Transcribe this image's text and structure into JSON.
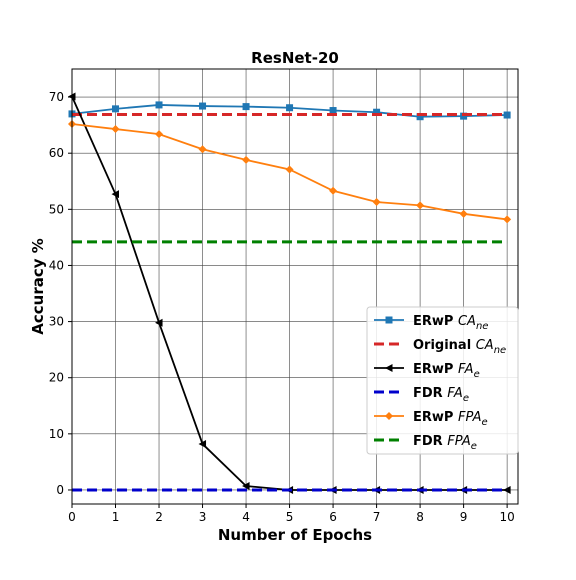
{
  "chart_data": {
    "type": "line",
    "title": "ResNet-20",
    "xlabel": "Number of Epochs",
    "ylabel": "Accuracy %",
    "x": [
      0,
      1,
      2,
      3,
      4,
      5,
      6,
      7,
      8,
      9,
      10
    ],
    "xlim": [
      0,
      10.25
    ],
    "ylim": [
      -2.5,
      75
    ],
    "xticks": [
      "0",
      "1",
      "2",
      "3",
      "4",
      "5",
      "6",
      "7",
      "8",
      "9",
      "10"
    ],
    "yticks": [
      "0",
      "10",
      "20",
      "30",
      "40",
      "50",
      "60",
      "70"
    ],
    "grid": true,
    "legend_position": "center-right",
    "series": [
      {
        "name": "ERwP",
        "name_suffix": "CA",
        "name_sub": "ne",
        "color": "#1f77b4",
        "marker": "square",
        "dashed": false,
        "values": [
          67.0,
          67.9,
          68.6,
          68.4,
          68.3,
          68.1,
          67.6,
          67.3,
          66.5,
          66.6,
          66.8
        ]
      },
      {
        "name": "Original",
        "name_suffix": "CA",
        "name_sub": "ne",
        "color": "#d62728",
        "marker": "none",
        "dashed": true,
        "values": [
          66.9,
          66.9,
          66.9,
          66.9,
          66.9,
          66.9,
          66.9,
          66.9,
          66.9,
          66.9,
          66.9
        ]
      },
      {
        "name": "ERwP",
        "name_suffix": "FA",
        "name_sub": "e",
        "color": "#000000",
        "marker": "triangle-left",
        "dashed": false,
        "values": [
          70.1,
          52.7,
          29.8,
          8.2,
          0.7,
          0.0,
          0.0,
          0.0,
          0.0,
          0.0,
          0.0
        ]
      },
      {
        "name": "FDR",
        "name_suffix": "FA",
        "name_sub": "e",
        "color": "#0000cc",
        "marker": "none",
        "dashed": true,
        "values": [
          0.0,
          0.0,
          0.0,
          0.0,
          0.0,
          0.0,
          0.0,
          0.0,
          0.0,
          0.0,
          0.0
        ]
      },
      {
        "name": "ERwP",
        "name_suffix": "FPA",
        "name_sub": "e",
        "color": "#ff7f0e",
        "marker": "diamond",
        "dashed": false,
        "values": [
          65.2,
          64.3,
          63.4,
          60.7,
          58.8,
          57.1,
          53.3,
          51.3,
          50.7,
          49.2,
          48.2
        ]
      },
      {
        "name": "FDR",
        "name_suffix": "FPA",
        "name_sub": "e",
        "color": "#008000",
        "marker": "none",
        "dashed": true,
        "values": [
          44.2,
          44.2,
          44.2,
          44.2,
          44.2,
          44.2,
          44.2,
          44.2,
          44.2,
          44.2,
          44.2
        ]
      }
    ]
  }
}
